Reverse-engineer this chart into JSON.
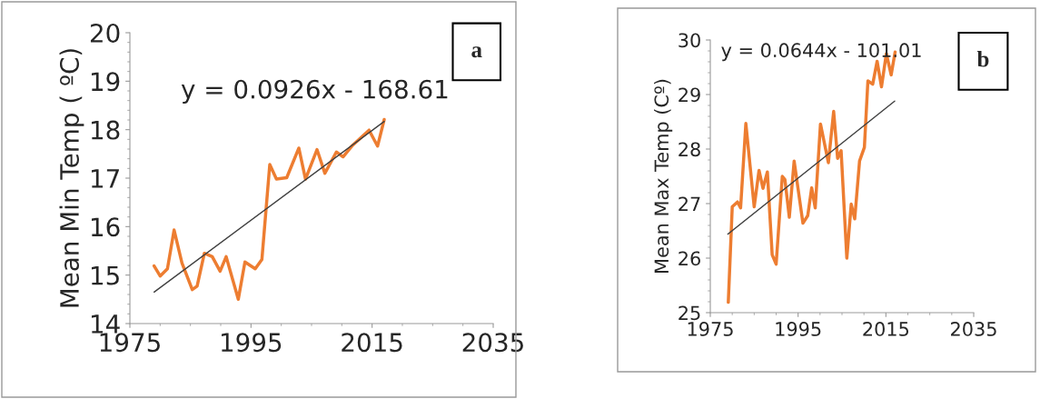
{
  "chart_data": [
    {
      "type": "line",
      "ylabel": "Mean Min Temp ( ºC)",
      "xlim": [
        1975,
        2035
      ],
      "xticks": [
        1975,
        1995,
        2015,
        2035
      ],
      "ylim": [
        14,
        20
      ],
      "yticks": [
        14,
        15,
        16,
        17,
        18,
        19,
        20
      ],
      "grid": false,
      "legend": false,
      "annotations": [
        "y = 0.0926x - 168.61",
        "a"
      ],
      "series": [
        {
          "color": "#ed7d31",
          "x": [
            1979.0,
            1980.0,
            1981.2,
            1982.3,
            1983.6,
            1985.3,
            1986.1,
            1987.3,
            1988.6,
            1989.9,
            1990.9,
            1992.9,
            1994.0,
            1995.7,
            1996.8,
            1998.1,
            1999.2,
            2000.9,
            2002.9,
            2004.0,
            2005.9,
            2007.2,
            2009.1,
            2010.2,
            2011.8,
            2014.5,
            2015.9,
            2017.0
          ],
          "values": [
            15.19,
            14.98,
            15.13,
            15.93,
            15.25,
            14.7,
            14.77,
            15.45,
            15.38,
            15.08,
            15.38,
            14.5,
            15.27,
            15.13,
            15.32,
            17.28,
            16.98,
            17.01,
            17.62,
            16.98,
            17.59,
            17.1,
            17.54,
            17.44,
            17.68,
            17.99,
            17.66,
            18.21
          ]
        },
        {
          "type": "line",
          "color": "#404040",
          "x": [
            1979,
            2017
          ],
          "values": [
            14.65,
            18.17
          ]
        }
      ]
    },
    {
      "type": "line",
      "ylabel": "Mean Max Temp (Cº)",
      "xlim": [
        1975,
        2035
      ],
      "xticks": [
        1975,
        1995,
        2015,
        2035
      ],
      "ylim": [
        25,
        30
      ],
      "yticks": [
        25,
        26,
        27,
        28,
        29,
        30
      ],
      "grid": false,
      "legend": false,
      "annotations": [
        "y = 0.0644x - 101.01",
        "b"
      ],
      "series": [
        {
          "color": "#ed7d31",
          "x": [
            1979.1,
            1980.0,
            1981.2,
            1981.9,
            1983.1,
            1985.0,
            1986.1,
            1987.0,
            1988.0,
            1989.1,
            1990.0,
            1991.4,
            1992.0,
            1993.0,
            1994.1,
            1996.1,
            1997.2,
            1998.1,
            1998.9,
            2000.1,
            2001.9,
            2003.1,
            2004.0,
            2004.8,
            2006.1,
            2007.1,
            2007.9,
            2009.0,
            2010.1,
            2010.9,
            2012.0,
            2013.0,
            2014.0,
            2015.1,
            2016.2,
            2017.1
          ],
          "values": [
            25.19,
            26.94,
            27.03,
            26.92,
            28.47,
            26.94,
            27.61,
            27.28,
            27.58,
            26.06,
            25.89,
            27.5,
            27.44,
            26.75,
            27.78,
            26.64,
            26.78,
            27.29,
            26.92,
            28.46,
            27.75,
            28.69,
            27.83,
            27.97,
            26.0,
            26.99,
            26.72,
            27.78,
            28.03,
            29.25,
            29.19,
            29.61,
            29.14,
            29.75,
            29.36,
            29.78
          ]
        },
        {
          "type": "line",
          "color": "#404040",
          "x": [
            1979,
            2017
          ],
          "values": [
            26.44,
            28.88
          ]
        }
      ]
    }
  ]
}
